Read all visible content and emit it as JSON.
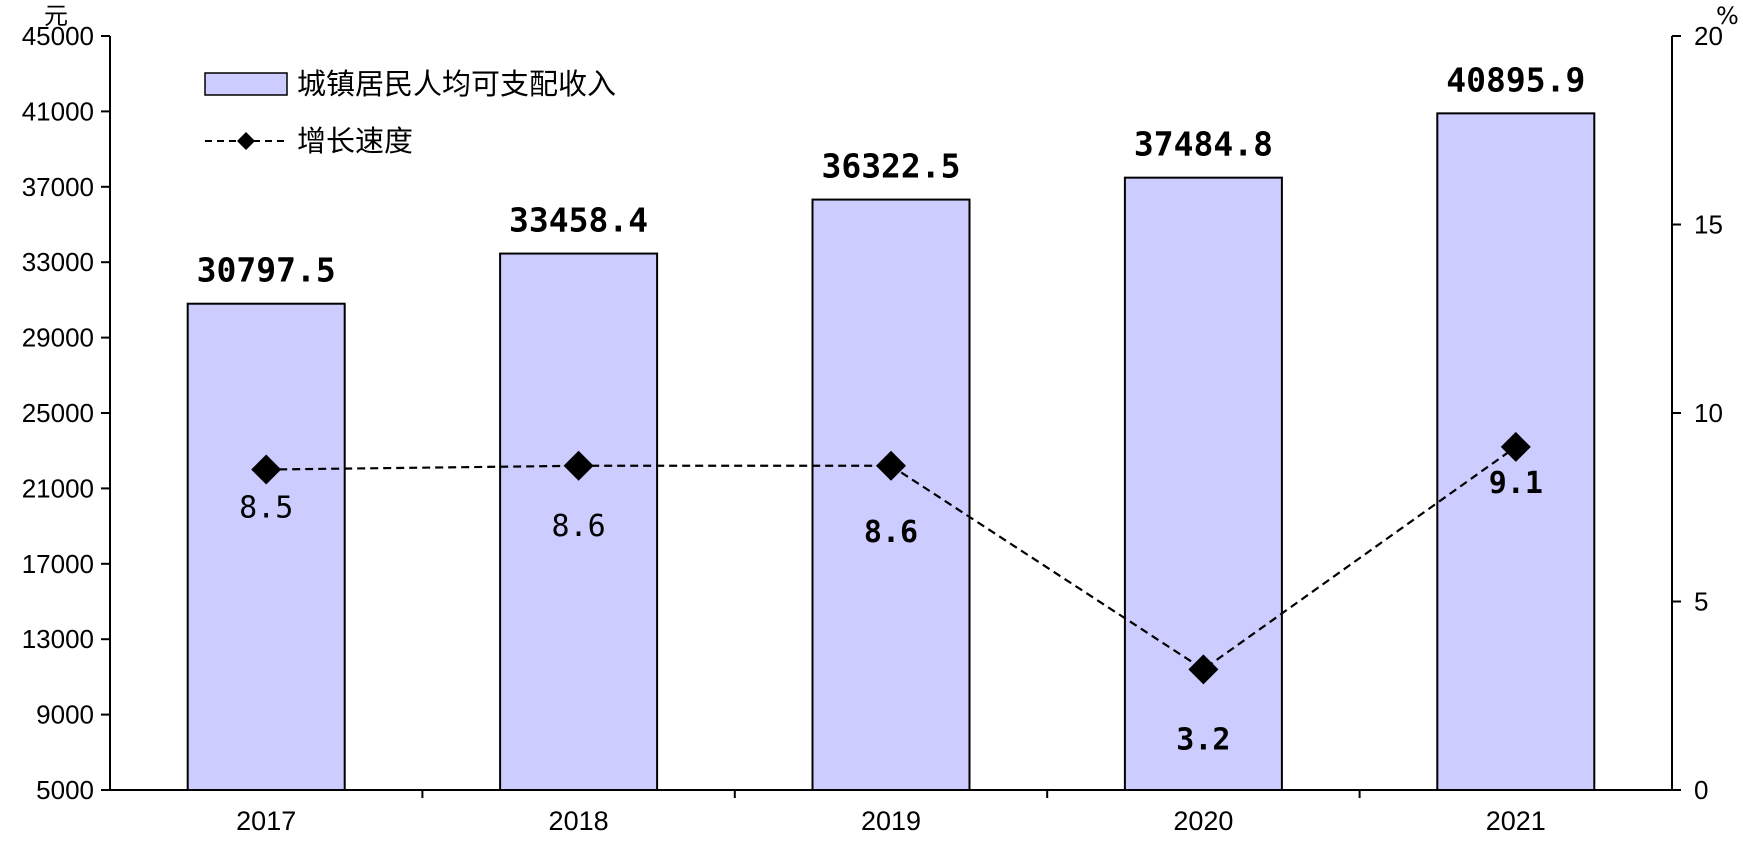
{
  "chart_data": {
    "type": "bar",
    "categories": [
      "2017",
      "2018",
      "2019",
      "2020",
      "2021"
    ],
    "series": [
      {
        "name": "城镇居民人均可支配收入",
        "type": "bar",
        "axis": "left",
        "values": [
          30797.5,
          33458.4,
          36322.5,
          37484.8,
          40895.9
        ],
        "value_labels": [
          "30797.5",
          "33458.4",
          "36322.5",
          "37484.8",
          "40895.9"
        ],
        "color": "#ccccff"
      },
      {
        "name": "增长速度",
        "type": "line",
        "axis": "right",
        "values": [
          8.5,
          8.6,
          8.6,
          3.2,
          9.1
        ],
        "value_labels": [
          "8.5",
          "8.6",
          "8.6",
          "3.2",
          "9.1"
        ],
        "style": "dashed",
        "marker": "diamond",
        "color": "#000000"
      }
    ],
    "y_left": {
      "unit": "元",
      "ylim": [
        5000,
        45000
      ],
      "ticks": [
        "5000",
        "9000",
        "13000",
        "17000",
        "21000",
        "25000",
        "29000",
        "33000",
        "37000",
        "41000",
        "45000"
      ]
    },
    "y_right": {
      "unit": "%",
      "ylim": [
        0,
        20
      ],
      "ticks": [
        "0",
        "5",
        "10",
        "15",
        "20"
      ]
    },
    "legend": {
      "position": "top-left",
      "items": [
        "城镇居民人均可支配收入",
        "增长速度"
      ]
    },
    "grid": false
  }
}
